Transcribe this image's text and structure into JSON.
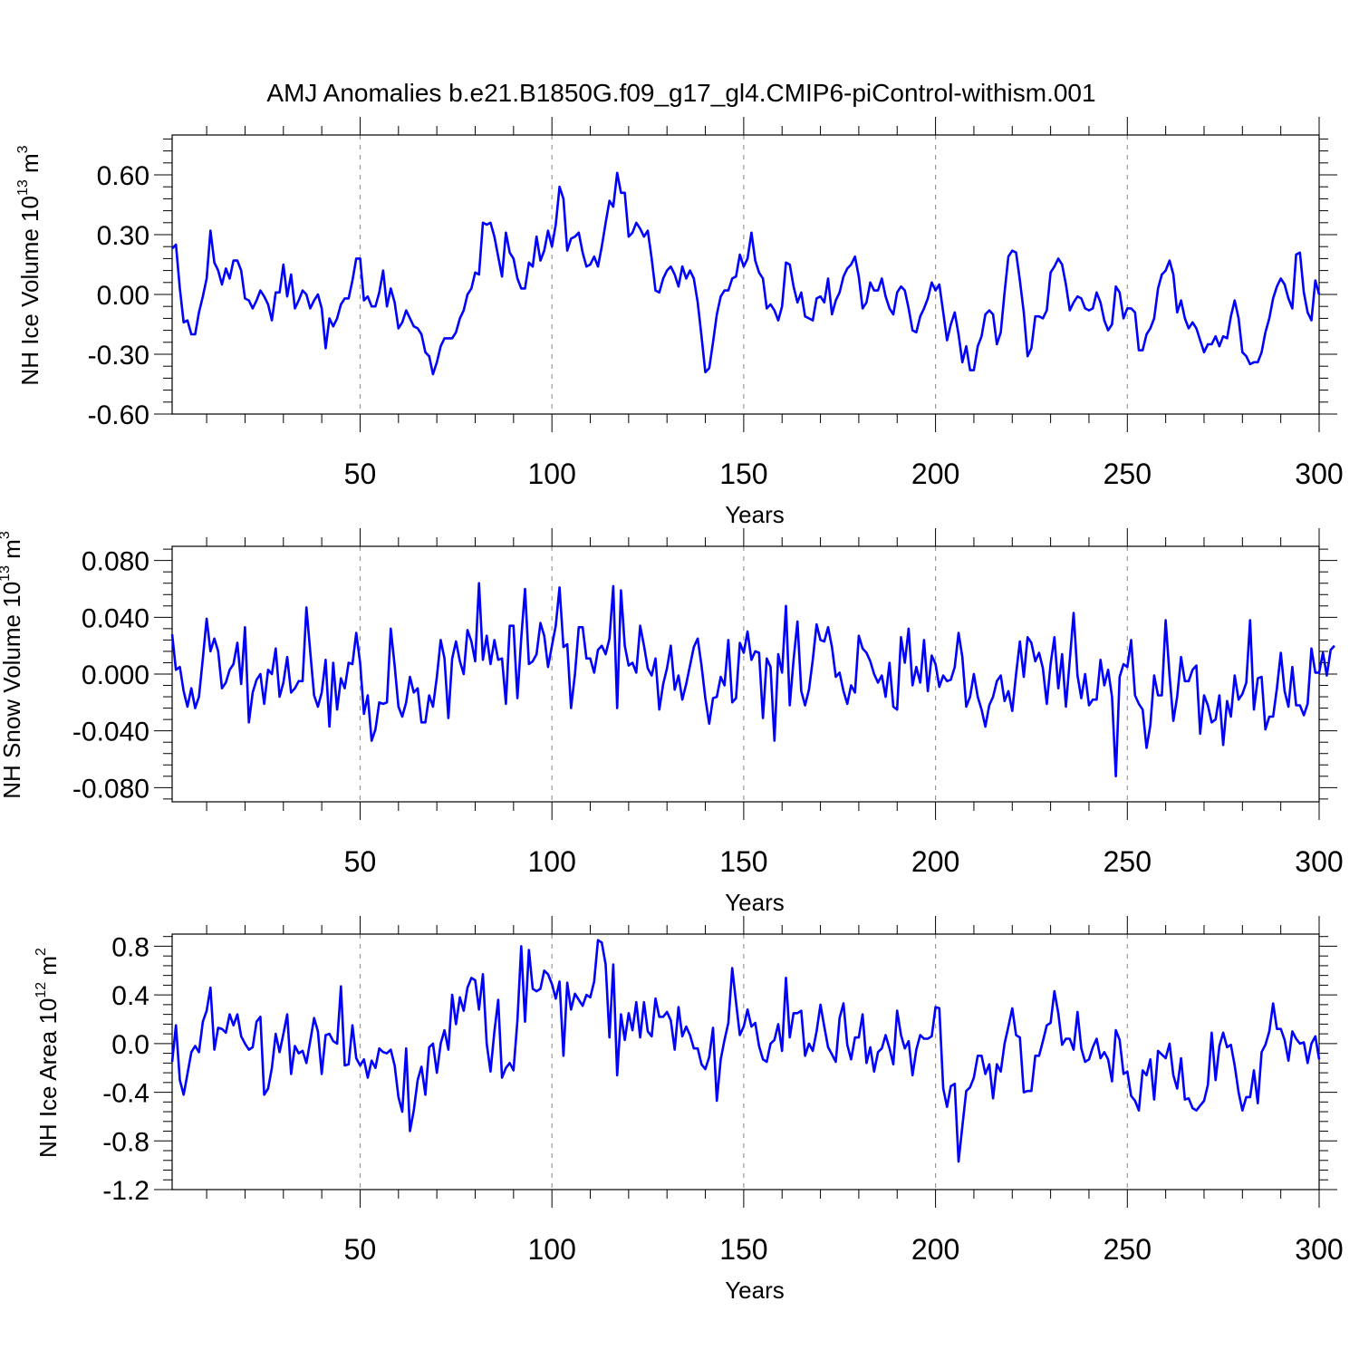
{
  "title": "AMJ Anomalies b.e21.B1850G.f09_g17_gl4.CMIP6-piControl-withism.001",
  "line_color": "#0000ff",
  "grid_color": "#999999",
  "chart_data": [
    {
      "type": "line",
      "ylabel_main": "NH Ice Volume 10",
      "ylabel_exp": "13",
      "ylabel_unit": " m",
      "ylabel_unit_exp": "3",
      "xlabel": "Years",
      "xlim": [
        1,
        300
      ],
      "ylim": [
        -0.6,
        0.8
      ],
      "x_ticks": [
        50,
        100,
        150,
        200,
        250,
        300
      ],
      "x_tick_labels": [
        "50",
        "100",
        "150",
        "200",
        "250",
        "300"
      ],
      "y_ticks": [
        -0.6,
        -0.3,
        0.0,
        0.3,
        0.6
      ],
      "y_tick_labels": [
        "-0.60",
        "-0.30",
        "0.00",
        "0.30",
        "0.60"
      ],
      "grid": "vertical-dashed",
      "values": [
        0.23,
        0.25,
        0.03,
        -0.14,
        -0.13,
        -0.2,
        -0.2,
        -0.09,
        -0.01,
        0.08,
        0.32,
        0.16,
        0.12,
        0.05,
        0.13,
        0.08,
        0.17,
        0.17,
        0.12,
        -0.02,
        -0.03,
        -0.07,
        -0.03,
        0.02,
        -0.01,
        -0.05,
        -0.13,
        0.01,
        0.01,
        0.15,
        -0.01,
        0.1,
        -0.07,
        -0.03,
        0.02,
        0.0,
        -0.07,
        -0.03,
        0.0,
        -0.07,
        -0.27,
        -0.12,
        -0.16,
        -0.12,
        -0.05,
        -0.02,
        -0.02,
        0.07,
        0.18,
        0.18,
        -0.03,
        -0.01,
        -0.06,
        -0.06,
        0.01,
        0.12,
        -0.06,
        0.03,
        -0.04,
        -0.17,
        -0.14,
        -0.08,
        -0.12,
        -0.16,
        -0.17,
        -0.2,
        -0.29,
        -0.31,
        -0.4,
        -0.34,
        -0.26,
        -0.22,
        -0.22,
        -0.22,
        -0.19,
        -0.12,
        -0.08,
        0.0,
        0.03,
        0.11,
        0.1,
        0.36,
        0.35,
        0.36,
        0.29,
        0.19,
        0.09,
        0.31,
        0.21,
        0.18,
        0.08,
        0.03,
        0.03,
        0.16,
        0.14,
        0.29,
        0.17,
        0.22,
        0.32,
        0.24,
        0.35,
        0.54,
        0.48,
        0.22,
        0.28,
        0.29,
        0.31,
        0.21,
        0.14,
        0.15,
        0.19,
        0.14,
        0.24,
        0.36,
        0.47,
        0.44,
        0.61,
        0.51,
        0.51,
        0.29,
        0.31,
        0.36,
        0.33,
        0.29,
        0.32,
        0.18,
        0.02,
        0.01,
        0.08,
        0.12,
        0.14,
        0.1,
        0.04,
        0.14,
        0.08,
        0.12,
        0.08,
        -0.04,
        -0.21,
        -0.39,
        -0.37,
        -0.24,
        -0.1,
        -0.01,
        0.02,
        0.02,
        0.08,
        0.09,
        0.2,
        0.14,
        0.18,
        0.31,
        0.17,
        0.11,
        0.08,
        -0.07,
        -0.05,
        -0.08,
        -0.13,
        -0.06,
        0.16,
        0.15,
        0.04,
        -0.04,
        0.01,
        -0.11,
        -0.12,
        -0.13,
        -0.02,
        -0.01,
        -0.04,
        0.08,
        -0.1,
        -0.03,
        0.01,
        0.09,
        0.13,
        0.15,
        0.19,
        0.09,
        -0.07,
        -0.04,
        0.06,
        0.02,
        0.02,
        0.08,
        -0.01,
        -0.07,
        -0.1,
        0.01,
        0.04,
        0.02,
        -0.07,
        -0.18,
        -0.19,
        -0.11,
        -0.07,
        -0.02,
        0.06,
        0.02,
        0.05,
        -0.09,
        -0.23,
        -0.15,
        -0.09,
        -0.2,
        -0.34,
        -0.26,
        -0.38,
        -0.38,
        -0.26,
        -0.21,
        -0.1,
        -0.08,
        -0.1,
        -0.25,
        -0.19,
        0.01,
        0.19,
        0.22,
        0.21,
        0.07,
        -0.09,
        -0.31,
        -0.27,
        -0.11,
        -0.11,
        -0.12,
        -0.08,
        0.11,
        0.14,
        0.18,
        0.15,
        0.05,
        -0.08,
        -0.04,
        -0.01,
        -0.02,
        -0.07,
        -0.08,
        -0.07,
        0.01,
        -0.04,
        -0.13,
        -0.18,
        -0.15,
        0.04,
        0.01,
        -0.12,
        -0.07,
        -0.07,
        -0.09,
        -0.28,
        -0.28,
        -0.2,
        -0.17,
        -0.12,
        0.03,
        0.1,
        0.12,
        0.17,
        0.1,
        -0.09,
        -0.03,
        -0.12,
        -0.17,
        -0.14,
        -0.17,
        -0.23,
        -0.29,
        -0.25,
        -0.25,
        -0.21,
        -0.26,
        -0.21,
        -0.22,
        -0.11,
        -0.03,
        -0.12,
        -0.29,
        -0.31,
        -0.35,
        -0.34,
        -0.34,
        -0.29,
        -0.19,
        -0.12,
        -0.02,
        0.04,
        0.08,
        0.05,
        -0.02,
        -0.07,
        0.2,
        0.21,
        0.01,
        -0.09,
        -0.13,
        0.07,
        0.0
      ]
    },
    {
      "type": "line",
      "ylabel_main": "NH Snow Volume 10",
      "ylabel_exp": "13",
      "ylabel_unit": " m",
      "ylabel_unit_exp": "3",
      "xlabel": "Years",
      "xlim": [
        1,
        300
      ],
      "ylim": [
        -0.09,
        0.09
      ],
      "x_ticks": [
        50,
        100,
        150,
        200,
        250,
        300
      ],
      "x_tick_labels": [
        "50",
        "100",
        "150",
        "200",
        "250",
        "300"
      ],
      "y_ticks": [
        -0.08,
        -0.04,
        0.0,
        0.04,
        0.08
      ],
      "y_tick_labels": [
        "-0.080",
        "-0.040",
        "0.000",
        "0.040",
        "0.080"
      ],
      "grid": "vertical-dashed",
      "values": [
        0.028,
        0.003,
        0.005,
        -0.012,
        -0.023,
        -0.01,
        -0.024,
        -0.016,
        0.011,
        0.039,
        0.016,
        0.025,
        0.016,
        -0.01,
        -0.006,
        0.003,
        0.007,
        0.022,
        -0.007,
        0.033,
        -0.034,
        -0.013,
        -0.004,
        0.0,
        -0.021,
        0.003,
        0.0,
        0.018,
        -0.016,
        -0.006,
        0.012,
        -0.013,
        -0.01,
        -0.005,
        -0.005,
        0.047,
        0.016,
        -0.015,
        -0.023,
        -0.013,
        0.01,
        -0.037,
        0.008,
        -0.025,
        -0.003,
        -0.01,
        0.008,
        0.007,
        0.029,
        0.008,
        -0.028,
        -0.015,
        -0.047,
        -0.039,
        -0.02,
        -0.021,
        -0.02,
        0.032,
        0.006,
        -0.023,
        -0.03,
        -0.02,
        -0.002,
        -0.013,
        -0.01,
        -0.034,
        -0.034,
        -0.015,
        -0.023,
        -0.002,
        0.024,
        0.011,
        -0.031,
        0.011,
        0.023,
        0.009,
        0.0,
        0.031,
        0.023,
        0.009,
        0.064,
        0.01,
        0.027,
        0.007,
        0.024,
        0.01,
        0.011,
        -0.021,
        0.034,
        0.034,
        -0.017,
        0.025,
        0.06,
        0.007,
        0.009,
        0.014,
        0.036,
        0.027,
        0.005,
        0.02,
        0.034,
        0.061,
        0.019,
        0.021,
        -0.024,
        0.0,
        0.033,
        0.033,
        0.011,
        0.011,
        0.001,
        0.017,
        0.02,
        0.014,
        0.025,
        0.062,
        -0.024,
        0.059,
        0.02,
        0.006,
        0.008,
        0.001,
        0.034,
        0.02,
        0.004,
        -0.001,
        0.011,
        -0.025,
        -0.007,
        0.004,
        0.02,
        -0.011,
        -0.001,
        -0.018,
        -0.007,
        0.006,
        0.019,
        0.025,
        0.006,
        -0.017,
        -0.035,
        -0.017,
        -0.016,
        -0.002,
        -0.008,
        0.024,
        -0.02,
        -0.017,
        0.022,
        0.015,
        0.03,
        0.01,
        0.016,
        0.015,
        -0.031,
        0.011,
        0.005,
        -0.047,
        0.014,
        0.001,
        0.048,
        -0.022,
        0.01,
        0.037,
        -0.012,
        -0.022,
        -0.011,
        0.01,
        0.035,
        0.024,
        0.023,
        0.033,
        0.019,
        -0.002,
        0.001,
        -0.012,
        -0.021,
        -0.008,
        -0.013,
        0.027,
        0.018,
        0.015,
        0.009,
        0.0,
        -0.006,
        -0.001,
        -0.016,
        0.008,
        -0.023,
        -0.025,
        0.026,
        0.008,
        0.032,
        -0.008,
        0.005,
        -0.006,
        0.024,
        -0.012,
        0.013,
        0.007,
        -0.009,
        -0.001,
        -0.005,
        -0.004,
        0.005,
        0.029,
        0.012,
        -0.023,
        -0.016,
        0.0,
        -0.016,
        -0.025,
        -0.037,
        -0.022,
        -0.016,
        -0.005,
        -0.001,
        -0.019,
        -0.012,
        -0.026,
        0.0,
        0.023,
        -0.002,
        0.026,
        0.022,
        0.009,
        0.015,
        0.004,
        -0.021,
        0.007,
        0.026,
        -0.01,
        0.014,
        -0.023,
        0.01,
        0.043,
        -0.001,
        -0.017,
        0.0,
        -0.022,
        -0.018,
        -0.018,
        0.01,
        -0.008,
        0.003,
        -0.016,
        -0.072,
        -0.002,
        0.007,
        0.005,
        0.024,
        -0.015,
        -0.021,
        -0.025,
        -0.052,
        -0.036,
        -0.001,
        -0.015,
        -0.015,
        0.038,
        -0.001,
        -0.033,
        -0.016,
        0.012,
        -0.005,
        -0.005,
        0.003,
        0.006,
        -0.042,
        -0.015,
        -0.022,
        -0.034,
        -0.032,
        -0.015,
        -0.05,
        -0.019,
        -0.03,
        -0.001,
        -0.018,
        -0.014,
        -0.006,
        0.038,
        -0.025,
        -0.003,
        -0.002,
        -0.039,
        -0.03,
        -0.03,
        -0.01,
        0.015,
        -0.012,
        -0.023,
        0.005,
        -0.022,
        -0.022,
        -0.029,
        -0.021,
        0.018,
        0.001,
        0.001,
        0.015,
        -0.001,
        0.017,
        0.02
      ]
    },
    {
      "type": "line",
      "ylabel_main": "NH Ice Area 10",
      "ylabel_exp": "12",
      "ylabel_unit": " m",
      "ylabel_unit_exp": "2",
      "xlabel": "Years",
      "xlim": [
        1,
        300
      ],
      "ylim": [
        -1.2,
        0.9
      ],
      "x_ticks": [
        50,
        100,
        150,
        200,
        250,
        300
      ],
      "x_tick_labels": [
        "50",
        "100",
        "150",
        "200",
        "250",
        "300"
      ],
      "y_ticks": [
        -1.2,
        -0.8,
        -0.4,
        0.0,
        0.4,
        0.8
      ],
      "y_tick_labels": [
        "-1.2",
        "-0.8",
        "-0.4",
        "0.0",
        "0.4",
        "0.8"
      ],
      "grid": "vertical-dashed",
      "values": [
        -0.15,
        0.15,
        -0.3,
        -0.42,
        -0.25,
        -0.07,
        -0.02,
        -0.07,
        0.18,
        0.27,
        0.46,
        -0.05,
        0.13,
        0.12,
        0.09,
        0.24,
        0.15,
        0.24,
        0.06,
        0.0,
        -0.05,
        -0.03,
        0.18,
        0.22,
        -0.42,
        -0.37,
        -0.2,
        0.08,
        -0.07,
        0.08,
        0.24,
        -0.25,
        -0.02,
        -0.08,
        -0.06,
        -0.16,
        0.02,
        0.21,
        0.1,
        -0.25,
        0.07,
        0.08,
        0.02,
        0.0,
        0.47,
        -0.18,
        -0.17,
        0.15,
        -0.12,
        -0.18,
        -0.13,
        -0.28,
        -0.14,
        -0.2,
        -0.04,
        -0.07,
        -0.08,
        -0.05,
        -0.18,
        -0.44,
        -0.56,
        -0.04,
        -0.72,
        -0.55,
        -0.3,
        -0.19,
        -0.42,
        -0.03,
        0.0,
        -0.24,
        0.0,
        0.11,
        -0.05,
        0.4,
        0.16,
        0.38,
        0.27,
        0.46,
        0.54,
        0.52,
        0.28,
        0.57,
        0.0,
        -0.23,
        0.1,
        0.36,
        -0.28,
        -0.2,
        -0.16,
        -0.22,
        0.19,
        0.8,
        0.18,
        0.77,
        0.45,
        0.43,
        0.45,
        0.6,
        0.57,
        0.49,
        0.37,
        0.51,
        -0.1,
        0.5,
        0.28,
        0.41,
        0.36,
        0.31,
        0.4,
        0.38,
        0.51,
        0.85,
        0.83,
        0.65,
        0.05,
        0.65,
        -0.26,
        0.24,
        0.03,
        0.25,
        0.11,
        0.34,
        0.05,
        0.34,
        0.1,
        0.06,
        0.37,
        0.22,
        0.22,
        0.26,
        0.19,
        -0.05,
        0.3,
        0.06,
        0.14,
        0.07,
        -0.04,
        -0.04,
        -0.17,
        -0.21,
        -0.11,
        0.13,
        -0.47,
        -0.13,
        0.03,
        0.17,
        0.62,
        0.34,
        0.07,
        0.14,
        0.28,
        0.14,
        0.17,
        -0.02,
        -0.13,
        -0.15,
        0.0,
        0.03,
        0.16,
        -0.06,
        0.54,
        0.05,
        0.25,
        0.25,
        0.27,
        -0.1,
        0.0,
        -0.06,
        0.1,
        0.32,
        0.14,
        -0.03,
        -0.09,
        -0.15,
        0.21,
        0.33,
        -0.01,
        -0.13,
        0.05,
        0.05,
        0.24,
        -0.16,
        -0.03,
        -0.23,
        -0.07,
        -0.04,
        0.07,
        -0.04,
        -0.17,
        0.27,
        0.07,
        -0.04,
        0.02,
        -0.26,
        -0.05,
        0.07,
        0.04,
        0.04,
        0.06,
        0.3,
        0.29,
        -0.37,
        -0.52,
        -0.35,
        -0.33,
        -0.97,
        -0.68,
        -0.39,
        -0.36,
        -0.28,
        -0.1,
        -0.1,
        -0.25,
        -0.17,
        -0.45,
        -0.17,
        -0.23,
        0.0,
        0.14,
        0.29,
        0.07,
        0.05,
        -0.4,
        -0.39,
        -0.39,
        -0.1,
        -0.1,
        0.02,
        0.15,
        0.17,
        0.43,
        0.25,
        -0.01,
        0.04,
        0.04,
        -0.05,
        0.26,
        -0.04,
        -0.15,
        -0.13,
        -0.03,
        0.04,
        -0.12,
        -0.07,
        -0.13,
        -0.31,
        0.11,
        0.03,
        -0.25,
        -0.23,
        -0.43,
        -0.47,
        -0.55,
        -0.22,
        -0.26,
        -0.13,
        -0.46,
        -0.06,
        -0.09,
        -0.12,
        0.0,
        -0.26,
        -0.37,
        -0.12,
        -0.46,
        -0.45,
        -0.53,
        -0.55,
        -0.51,
        -0.47,
        -0.34,
        0.09,
        -0.3,
        -0.02,
        0.09,
        -0.03,
        -0.01,
        -0.18,
        -0.4,
        -0.55,
        -0.44,
        -0.44,
        -0.22,
        -0.49,
        -0.07,
        -0.01,
        0.1,
        0.33,
        0.12,
        0.12,
        0.03,
        -0.14,
        0.1,
        0.04,
        0.0,
        0.01,
        -0.16,
        0.0,
        0.06,
        -0.13
      ]
    }
  ]
}
